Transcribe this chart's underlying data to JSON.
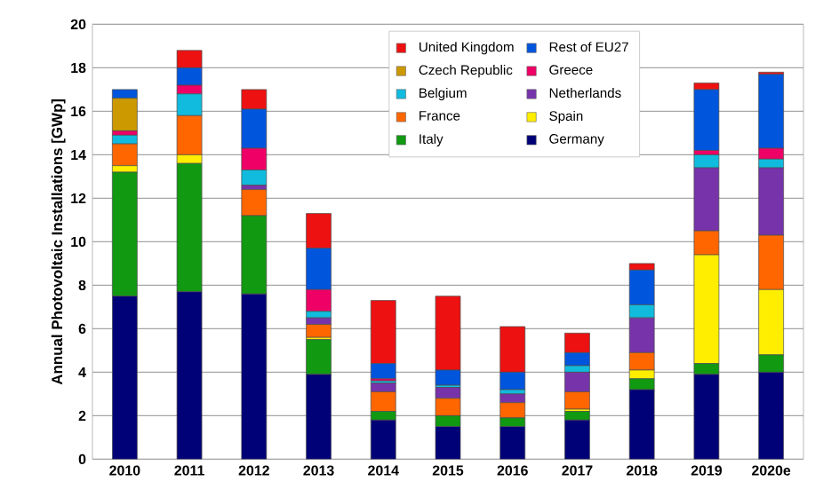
{
  "chart_data": {
    "type": "bar",
    "stacked": true,
    "ylabel": "Annual Photovoltaic Installations [GWp]",
    "categories": [
      "2010",
      "2011",
      "2012",
      "2013",
      "2014",
      "2015",
      "2016",
      "2017",
      "2018",
      "2019",
      "2020e"
    ],
    "series": [
      {
        "name": "Germany",
        "color": "#000077",
        "values": [
          7.5,
          7.7,
          7.6,
          3.9,
          1.8,
          1.5,
          1.5,
          1.8,
          3.2,
          3.9,
          4.0
        ]
      },
      {
        "name": "Italy",
        "color": "#119911",
        "values": [
          5.7,
          5.9,
          3.6,
          1.6,
          0.4,
          0.5,
          0.4,
          0.4,
          0.5,
          0.5,
          0.8
        ]
      },
      {
        "name": "Spain",
        "color": "#ffee00",
        "values": [
          0.3,
          0.4,
          0.0,
          0.1,
          0.0,
          0.0,
          0.0,
          0.1,
          0.4,
          5.0,
          3.0
        ]
      },
      {
        "name": "France",
        "color": "#ff6600",
        "values": [
          1.0,
          1.8,
          1.2,
          0.6,
          0.9,
          0.8,
          0.7,
          0.8,
          0.8,
          1.1,
          2.5
        ]
      },
      {
        "name": "Netherlands",
        "color": "#7733aa",
        "values": [
          0.0,
          0.0,
          0.2,
          0.3,
          0.4,
          0.5,
          0.4,
          0.9,
          1.6,
          2.9,
          3.1
        ]
      },
      {
        "name": "Belgium",
        "color": "#11bbdd",
        "values": [
          0.4,
          1.0,
          0.7,
          0.3,
          0.1,
          0.1,
          0.2,
          0.3,
          0.6,
          0.6,
          0.4
        ]
      },
      {
        "name": "Greece",
        "color": "#ee0066",
        "values": [
          0.2,
          0.4,
          1.0,
          1.0,
          0.1,
          0.0,
          0.0,
          0.0,
          0.0,
          0.2,
          0.5
        ]
      },
      {
        "name": "Czech Republic",
        "color": "#cc9900",
        "values": [
          1.5,
          0.0,
          0.0,
          0.0,
          0.0,
          0.0,
          0.0,
          0.0,
          0.0,
          0.0,
          0.0
        ]
      },
      {
        "name": "Rest of EU27",
        "color": "#0055dd",
        "values": [
          0.4,
          0.8,
          1.8,
          1.9,
          0.7,
          0.7,
          0.8,
          0.6,
          1.6,
          2.8,
          3.4
        ]
      },
      {
        "name": "United Kingdom",
        "color": "#ee1111",
        "values": [
          0.0,
          0.8,
          0.9,
          1.6,
          2.9,
          3.4,
          2.1,
          0.9,
          0.3,
          0.3,
          0.1
        ]
      }
    ],
    "ylim": [
      0,
      20
    ],
    "yticks": [
      0,
      2,
      4,
      6,
      8,
      10,
      12,
      14,
      16,
      18,
      20
    ],
    "grid": "y",
    "legend": "top right"
  }
}
